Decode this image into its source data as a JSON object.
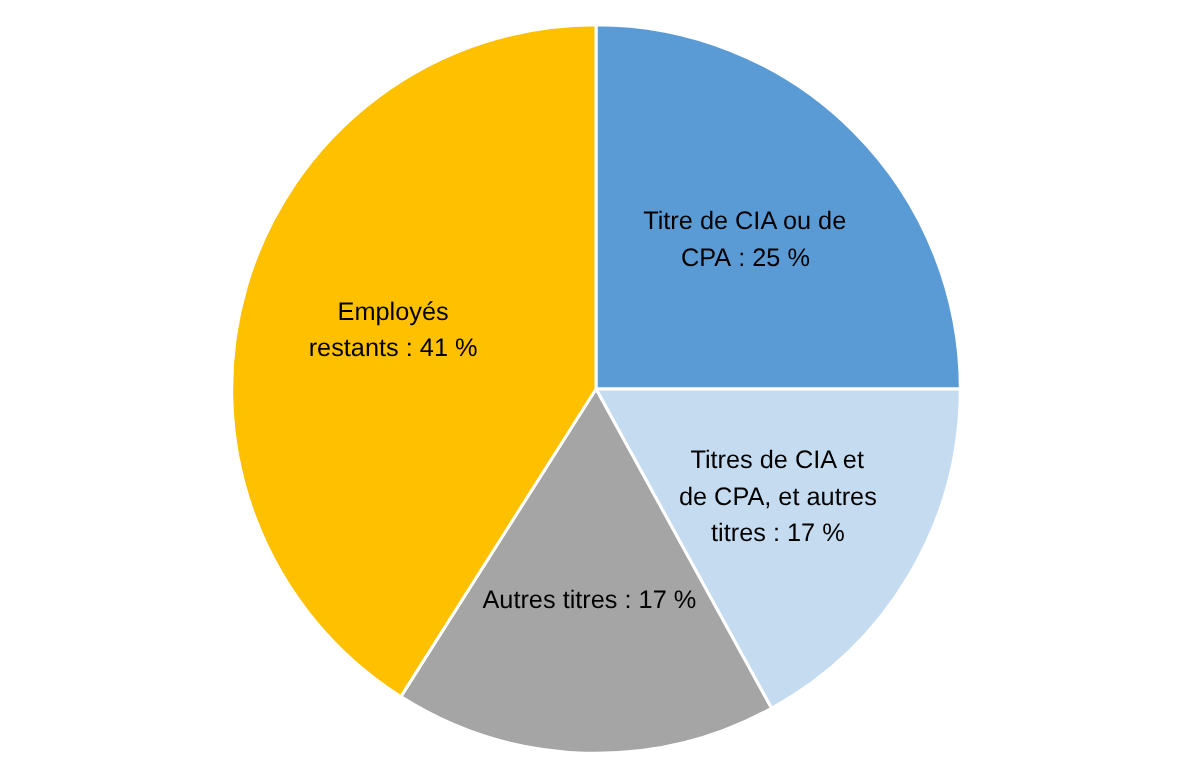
{
  "chart_data": {
    "type": "pie",
    "categories": [
      "Titre de CIA ou de CPA",
      "Titres de CIA et de CPA, et autres titres",
      "Autres titres",
      "Employés restants"
    ],
    "values": [
      25,
      17,
      17,
      41
    ],
    "value_labels": [
      "25 %",
      "17 %",
      "17 %",
      "41 %"
    ],
    "colors": [
      "#5b9bd5",
      "#c5dcf0",
      "#a5a5a5",
      "#ffc000"
    ]
  }
}
